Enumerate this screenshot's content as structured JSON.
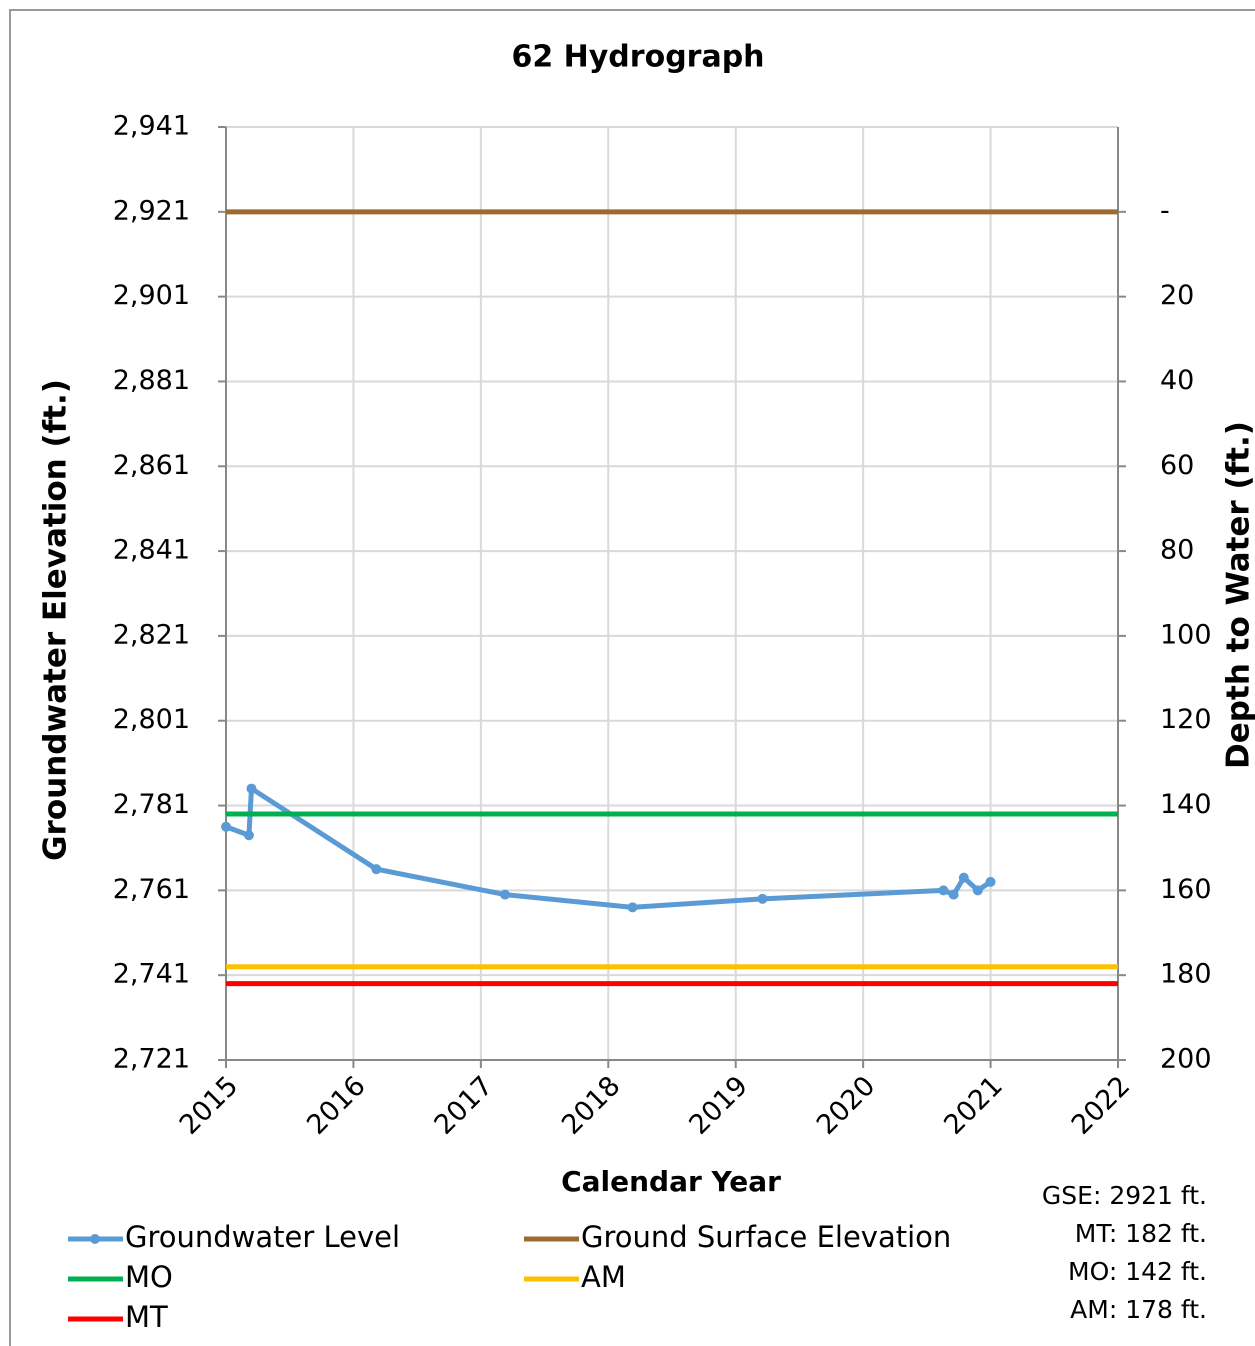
{
  "chart_data": {
    "type": "line",
    "title": "62 Hydrograph",
    "x_label": "Calendar Year",
    "y_label": "Groundwater Elevation (ft.)",
    "y2_label": "Depth to Water (ft.)",
    "xlim": [
      2015,
      2022
    ],
    "xticks": [
      2015,
      2016,
      2017,
      2018,
      2019,
      2020,
      2021,
      2022
    ],
    "ylim": [
      2721,
      2941
    ],
    "yticks": [
      {
        "value": 2721,
        "label": "2,721"
      },
      {
        "value": 2741,
        "label": "2,741"
      },
      {
        "value": 2761,
        "label": "2,761"
      },
      {
        "value": 2781,
        "label": "2,781"
      },
      {
        "value": 2801,
        "label": "2,801"
      },
      {
        "value": 2821,
        "label": "2,821"
      },
      {
        "value": 2841,
        "label": "2,841"
      },
      {
        "value": 2861,
        "label": "2,861"
      },
      {
        "value": 2881,
        "label": "2,881"
      },
      {
        "value": 2901,
        "label": "2,901"
      },
      {
        "value": 2921,
        "label": "2,921"
      },
      {
        "value": 2941,
        "label": "2,941"
      }
    ],
    "y2lim": [
      200,
      -20
    ],
    "y2ticks": [
      200,
      180,
      160,
      140,
      120,
      100,
      80,
      60,
      40,
      20,
      {
        "value": 0,
        "label": "-"
      }
    ],
    "grid": true,
    "series": [
      {
        "name": "Groundwater Level",
        "color": "#5b9bd5",
        "markers": true,
        "x": [
          2015.0,
          2015.18,
          2015.2,
          2016.18,
          2017.19,
          2018.19,
          2019.21,
          2020.63,
          2020.71,
          2020.79,
          2020.9,
          2021.0
        ],
        "values": [
          2776,
          2774,
          2785,
          2766,
          2760,
          2757,
          2759,
          2761,
          2760,
          2764,
          2761,
          2763
        ]
      },
      {
        "name": "Ground Surface Elevation",
        "color": "#9c6b30",
        "x": [
          2015,
          2022
        ],
        "values": [
          2921,
          2921
        ]
      },
      {
        "name": "MO",
        "color": "#00b050",
        "x": [
          2015,
          2022
        ],
        "values": [
          2779,
          2779
        ]
      },
      {
        "name": "AM",
        "color": "#ffc000",
        "x": [
          2015,
          2022
        ],
        "values": [
          2743,
          2743
        ]
      },
      {
        "name": "MT",
        "color": "#ff0000",
        "x": [
          2015,
          2022
        ],
        "values": [
          2739,
          2739
        ]
      }
    ],
    "annotations": [
      "GSE: 2921 ft.",
      "MT: 182 ft.",
      "MO: 142 ft.",
      "AM: 178 ft."
    ]
  }
}
